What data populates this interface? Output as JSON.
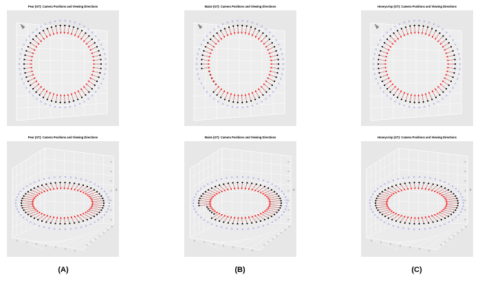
{
  "panels": [
    {
      "title": "Pear (GT): Camera Positions and Viewing Directions",
      "view": "top",
      "variant": "regular"
    },
    {
      "title": "Maize (GT): Camera Positions and Viewing Directions",
      "view": "top",
      "variant": "gap"
    },
    {
      "title": "Honeycrisp (GT): Camera Positions and Viewing Directions",
      "view": "top",
      "variant": "regular"
    },
    {
      "title": "Pear (GT): Camera Positions and Viewing Directions",
      "view": "perspective",
      "variant": "regular"
    },
    {
      "title": "Maize (GT): Camera Positions and Viewing Directions",
      "view": "perspective",
      "variant": "gap"
    },
    {
      "title": "Honeycrisp (GT): Camera Positions and Viewing Directions",
      "view": "perspective",
      "variant": "regular"
    }
  ],
  "labels": {
    "a": "(A)",
    "b": "(B)",
    "c": "(C)"
  },
  "axis_label_z": "Z",
  "colors": {
    "arrow": "#ff0000",
    "camera": "#000000",
    "index_label": "#6a6af0",
    "background": "#e7e7e7",
    "grid": "#ffffff"
  }
}
